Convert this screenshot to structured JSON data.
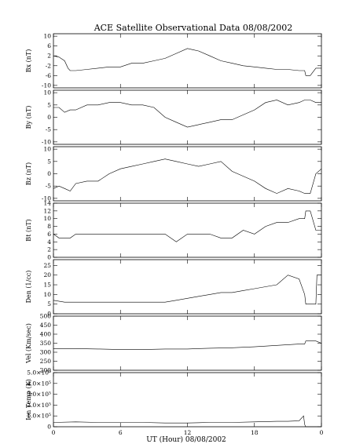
{
  "chart_data": {
    "type": "line",
    "title": "ACE Satellite Observational Data   08/08/2002",
    "xlabel": "UT (Hour)   08/08/2002",
    "x_ticks": [
      "0",
      "6",
      "12",
      "18",
      "0"
    ],
    "xlim": [
      0,
      24
    ],
    "grid": false,
    "legend": "none",
    "panels": [
      {
        "ylabel": "Bx (nT)",
        "ylim": [
          -11,
          11
        ],
        "yticks": [
          -10,
          -6,
          -2,
          2,
          6,
          10
        ],
        "ytick_labels": [
          "-10",
          "-6",
          "-2",
          "2",
          "6",
          "10"
        ],
        "series": [
          {
            "x": [
              0,
              0.5,
              1.0,
              1.3,
              1.5,
              2,
              3,
              4,
              5,
              6,
              7,
              8,
              9,
              10,
              11,
              12,
              12.5,
              13,
              14,
              15,
              16,
              17,
              18,
              19,
              20,
              21,
              22,
              22.5,
              22.6,
              23,
              23.5,
              24
            ],
            "y": [
              2,
              1.5,
              0,
              -3,
              -4,
              -4,
              -3.5,
              -3,
              -2.5,
              -2.5,
              -1,
              -1,
              0,
              1,
              3,
              5,
              4.5,
              4,
              2,
              0,
              -1,
              -2,
              -2.5,
              -3,
              -3.5,
              -3.5,
              -4,
              -4,
              -6,
              -6,
              -3,
              -3
            ]
          }
        ]
      },
      {
        "ylabel": "By (nT)",
        "ylim": [
          -11,
          11
        ],
        "yticks": [
          -10,
          -5,
          0,
          5,
          10
        ],
        "ytick_labels": [
          "-10",
          "-5",
          "0",
          "5",
          "10"
        ],
        "series": [
          {
            "x": [
              0,
              0.5,
              1.0,
              1.5,
              2,
              3,
              4,
              5,
              6,
              7,
              8,
              9,
              10,
              11,
              12,
              13,
              14,
              15,
              16,
              17,
              18,
              19,
              20,
              21,
              22,
              22.5,
              22.6,
              23,
              23.5,
              24
            ],
            "y": [
              4,
              4,
              2,
              3,
              3,
              5,
              5,
              6,
              6,
              5,
              5,
              4,
              0,
              -2,
              -4,
              -3,
              -2,
              -1,
              -1,
              1,
              3,
              6,
              7,
              5,
              6,
              7,
              7,
              7,
              6,
              6
            ]
          }
        ]
      },
      {
        "ylabel": "Bz (nT)",
        "ylim": [
          -11,
          11
        ],
        "yticks": [
          -10,
          -5,
          0,
          5,
          10
        ],
        "ytick_labels": [
          "-10",
          "-5",
          "0",
          "5",
          "10"
        ],
        "series": [
          {
            "x": [
              0,
              0.5,
              1.0,
              1.5,
              2,
              3,
              4,
              5,
              6,
              7,
              8,
              9,
              10,
              11,
              12,
              13,
              14,
              15,
              16,
              17,
              18,
              19,
              20,
              21,
              22,
              22.5,
              22.6,
              23,
              23.5,
              24
            ],
            "y": [
              -6,
              -5,
              -6,
              -7,
              -4,
              -3,
              -3,
              0,
              2,
              3,
              4,
              5,
              6,
              5,
              4,
              3,
              4,
              5,
              1,
              -1,
              -3,
              -6,
              -8,
              -6,
              -7,
              -8,
              -8,
              -8,
              0,
              2
            ]
          }
        ]
      },
      {
        "ylabel": "Bt (nT)",
        "ylim": [
          0,
          14
        ],
        "yticks": [
          0,
          2,
          4,
          6,
          8,
          10,
          12,
          14
        ],
        "ytick_labels": [
          "0",
          "2",
          "4",
          "6",
          "8",
          "10",
          "12",
          "14"
        ],
        "series": [
          {
            "x": [
              0,
              0.5,
              1.0,
              1.5,
              2,
              3,
              4,
              5,
              6,
              7,
              8,
              9,
              10,
              11,
              12,
              13,
              14,
              15,
              16,
              17,
              18,
              19,
              20,
              21,
              22,
              22.5,
              22.6,
              23,
              23.5,
              24
            ],
            "y": [
              6,
              5,
              5,
              5,
              6,
              6,
              6,
              6,
              6,
              6,
              6,
              6,
              6,
              4,
              6,
              6,
              6,
              5,
              5,
              7,
              6,
              8,
              9,
              9,
              10,
              10,
              12,
              12,
              7,
              7
            ]
          }
        ]
      },
      {
        "ylabel": "Den (1/cc)",
        "ylim": [
          0,
          28
        ],
        "yticks": [
          0,
          5,
          10,
          15,
          20,
          25
        ],
        "ytick_labels": [
          "0",
          "5",
          "10",
          "15",
          "20",
          "25"
        ],
        "series": [
          {
            "x": [
              0,
              1,
              2,
              3,
              4,
              5,
              6,
              7,
              8,
              9,
              10,
              11,
              12,
              13,
              14,
              15,
              16,
              17,
              18,
              19,
              20,
              21,
              22,
              22.5,
              22.6,
              23.5,
              23.6,
              24
            ],
            "y": [
              7,
              6,
              6,
              6,
              6,
              6,
              6,
              6,
              6,
              6,
              6,
              7,
              8,
              9,
              10,
              11,
              11,
              12,
              13,
              14,
              15,
              20,
              18,
              10,
              5,
              5,
              20,
              20
            ]
          }
        ]
      },
      {
        "ylabel": "Vel (Km/sec)",
        "ylim": [
          200,
          500
        ],
        "yticks": [
          200,
          250,
          300,
          350,
          400,
          450,
          500
        ],
        "ytick_labels": [
          "200",
          "250",
          "300",
          "350",
          "400",
          "450",
          "500"
        ],
        "series": [
          {
            "x": [
              0,
              2,
              4,
              6,
              8,
              10,
              12,
              14,
              16,
              18,
              20,
              22,
              22.5,
              22.6,
              23.5,
              24
            ],
            "y": [
              320,
              320,
              318,
              315,
              315,
              318,
              318,
              322,
              325,
              330,
              338,
              345,
              345,
              362,
              362,
              350
            ]
          }
        ]
      },
      {
        "ylabel": "Ion Temp (K)",
        "ylim": [
          0,
          500000
        ],
        "yticks": [
          0,
          100000,
          200000,
          300000,
          400000,
          500000
        ],
        "ytick_labels": [
          "0",
          "1.0×10⁵",
          "2.0×10⁵",
          "3.0×10⁵",
          "4.0×10⁵",
          "5.0×10⁵"
        ],
        "series": [
          {
            "x": [
              0,
              2,
              4,
              6,
              8,
              10,
              12,
              14,
              16,
              18,
              20,
              21,
              22,
              22.4,
              22.5,
              22.6,
              24
            ],
            "y": [
              40000,
              45000,
              40000,
              40000,
              40000,
              35000,
              35000,
              40000,
              40000,
              45000,
              50000,
              50000,
              55000,
              100000,
              20000,
              0,
              0
            ]
          }
        ]
      }
    ]
  }
}
